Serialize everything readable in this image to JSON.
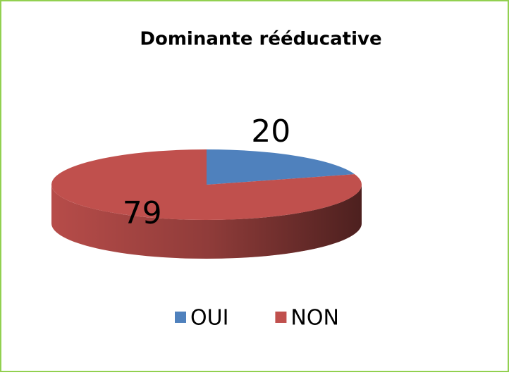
{
  "chart_data": {
    "type": "pie",
    "title": "Dominante rééducative",
    "categories": [
      "OUI",
      "NON"
    ],
    "values": [
      20,
      79
    ],
    "colors": [
      "#4f81bd",
      "#c0504d"
    ],
    "legend": "bottom"
  }
}
